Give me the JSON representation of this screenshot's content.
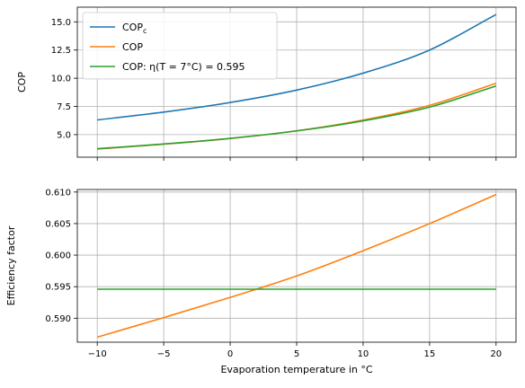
{
  "chart_data": [
    {
      "type": "line",
      "ylabel": "COP",
      "xlabel": "",
      "xlim": [
        -11.5,
        21.5
      ],
      "ylim": [
        3.0,
        16.3
      ],
      "grid": true,
      "legend": "top-left",
      "xticks": [
        -10,
        -5,
        0,
        5,
        10,
        15,
        20
      ],
      "yticks": [
        5.0,
        7.5,
        10.0,
        12.5,
        15.0
      ],
      "ytick_labels": [
        "5.0",
        "7.5",
        "10.0",
        "12.5",
        "15.0"
      ],
      "x": [
        -10,
        -5,
        0,
        5,
        10,
        15,
        20
      ],
      "series": [
        {
          "name": "COP_c",
          "legend_main": "COP",
          "legend_sub": "c",
          "color": "#1f77b4",
          "values": [
            6.3,
            7.0,
            7.85,
            8.95,
            10.45,
            12.5,
            15.65
          ]
        },
        {
          "name": "COP",
          "legend_main": "COP",
          "legend_sub": "",
          "color": "#ff7f0e",
          "values": [
            3.72,
            4.15,
            4.66,
            5.34,
            6.29,
            7.6,
            9.55
          ]
        },
        {
          "name": "COP: η(T = 7°C) = 0.595",
          "legend_main": "COP: η(T = 7°C) = 0.595",
          "legend_sub": "",
          "color": "#2ca02c",
          "values": [
            3.75,
            4.17,
            4.67,
            5.33,
            6.22,
            7.44,
            9.31
          ]
        }
      ]
    },
    {
      "type": "line",
      "ylabel": "Efficiency factor",
      "xlabel": "Evaporation temperature in °C",
      "xlim": [
        -11.5,
        21.5
      ],
      "ylim": [
        0.5862,
        0.6104
      ],
      "grid": true,
      "xticks": [
        -10,
        -5,
        0,
        5,
        10,
        15,
        20
      ],
      "xtick_labels": [
        "−10",
        "−5",
        "0",
        "5",
        "10",
        "15",
        "20"
      ],
      "yticks": [
        0.59,
        0.595,
        0.6,
        0.605,
        0.61
      ],
      "ytick_labels": [
        "0.590",
        "0.595",
        "0.600",
        "0.605",
        "0.610"
      ],
      "x": [
        -10,
        -5,
        0,
        5,
        10,
        15,
        20
      ],
      "series": [
        {
          "name": "COP",
          "color": "#ff7f0e",
          "values": [
            0.587,
            0.5901,
            0.5933,
            0.5967,
            0.6007,
            0.605,
            0.6096
          ]
        },
        {
          "name": "COP: η(T = 7°C) = 0.595",
          "color": "#2ca02c",
          "values": [
            0.5946,
            0.5946,
            0.5946,
            0.5946,
            0.5946,
            0.5946,
            0.5946
          ]
        }
      ]
    }
  ]
}
